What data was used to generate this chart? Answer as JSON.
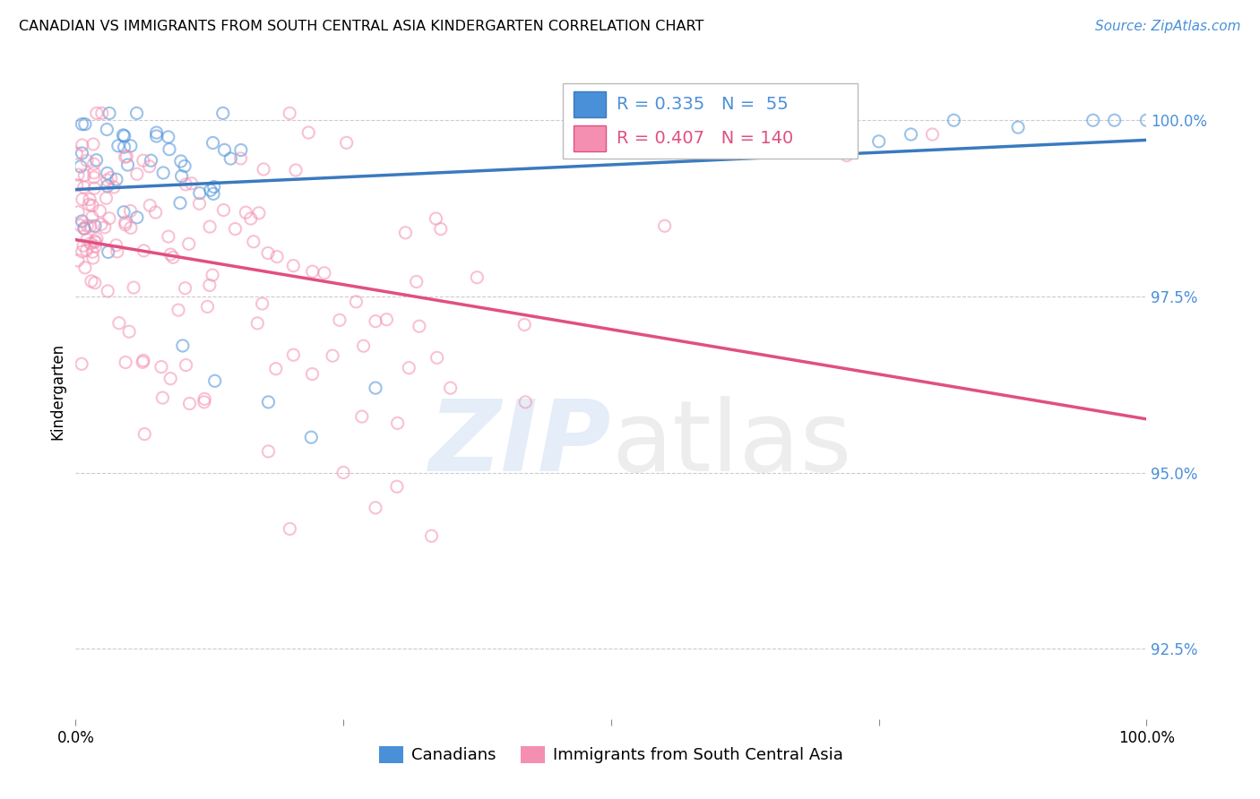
{
  "title": "CANADIAN VS IMMIGRANTS FROM SOUTH CENTRAL ASIA KINDERGARTEN CORRELATION CHART",
  "source": "Source: ZipAtlas.com",
  "ylabel": "Kindergarten",
  "canadians_R": 0.335,
  "canadians_N": 55,
  "immigrants_R": 0.407,
  "immigrants_N": 140,
  "blue_color": "#4a90d9",
  "pink_color": "#f48fb1",
  "trend_blue": "#3a7abf",
  "trend_pink": "#e05080",
  "legend_label_canadian": "Canadians",
  "legend_label_immigrant": "Immigrants from South Central Asia",
  "ylim_min": 91.5,
  "ylim_max": 100.8,
  "y_ticks": [
    92.5,
    95.0,
    97.5,
    100.0
  ],
  "marker_size": 90,
  "marker_alpha": 0.55
}
